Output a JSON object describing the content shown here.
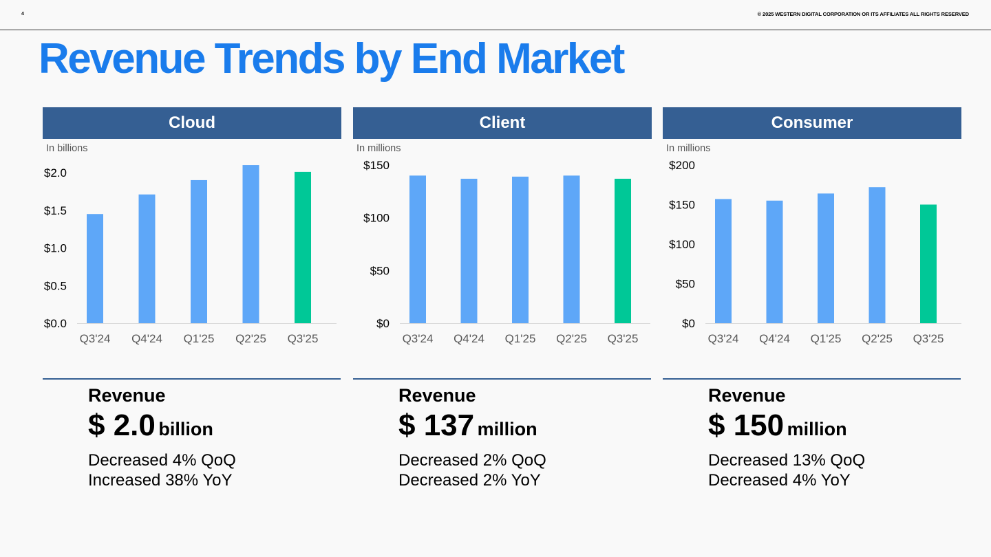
{
  "header": {
    "page_number": "4",
    "copyright": "© 2025 WESTERN DIGITAL CORPORATION OR ITS AFFILIATES  ALL RIGHTS RESERVED"
  },
  "title": "Revenue Trends by End Market",
  "panels": [
    {
      "name": "Cloud",
      "unit_label": "In billions",
      "revenue_label": "Revenue",
      "revenue_amount": "$ 2.0",
      "revenue_unit": "billion",
      "change_qoq": "Decreased 4% QoQ",
      "change_yoy": "Increased 38% YoY"
    },
    {
      "name": "Client",
      "unit_label": "In millions",
      "revenue_label": "Revenue",
      "revenue_amount": "$ 137",
      "revenue_unit": "million",
      "change_qoq": "Decreased 2% QoQ",
      "change_yoy": "Decreased 2% YoY"
    },
    {
      "name": "Consumer",
      "unit_label": "In millions",
      "revenue_label": "Revenue",
      "revenue_amount": "$ 150",
      "revenue_unit": "million",
      "change_qoq": "Decreased 13% QoQ",
      "change_yoy": "Decreased 4% YoY"
    }
  ],
  "colors": {
    "bar": "#5ea7f8",
    "highlight_bar": "#00c897",
    "header_bg": "#355f93",
    "title": "#1a7cec"
  },
  "chart_data": [
    {
      "type": "bar",
      "title": "Cloud",
      "categories": [
        "Q3'24",
        "Q4'24",
        "Q1'25",
        "Q2'25",
        "Q3'25"
      ],
      "values": [
        1.45,
        1.71,
        1.9,
        2.1,
        2.01
      ],
      "ylim": [
        0,
        2.0
      ],
      "yticks": [
        0,
        0.5,
        1.0,
        1.5,
        2.0
      ],
      "ytick_labels": [
        "$0.0",
        "$0.5",
        "$1.0",
        "$1.5",
        "$2.0"
      ],
      "highlight_index": 4,
      "grid": false
    },
    {
      "type": "bar",
      "title": "Client",
      "categories": [
        "Q3'24",
        "Q4'24",
        "Q1'25",
        "Q2'25",
        "Q3'25"
      ],
      "values": [
        140,
        137,
        139,
        140,
        137
      ],
      "ylim": [
        0,
        150
      ],
      "yticks": [
        0,
        50,
        100,
        150
      ],
      "ytick_labels": [
        "$0",
        "$50",
        "$100",
        "$150"
      ],
      "highlight_index": 4,
      "grid": false
    },
    {
      "type": "bar",
      "title": "Consumer",
      "categories": [
        "Q3'24",
        "Q4'24",
        "Q1'25",
        "Q2'25",
        "Q3'25"
      ],
      "values": [
        157,
        155,
        164,
        172,
        150
      ],
      "ylim": [
        0,
        200
      ],
      "yticks": [
        0,
        50,
        100,
        150,
        200
      ],
      "ytick_labels": [
        "$0",
        "$50",
        "$100",
        "$150",
        "$200"
      ],
      "highlight_index": 4,
      "grid": false
    }
  ]
}
